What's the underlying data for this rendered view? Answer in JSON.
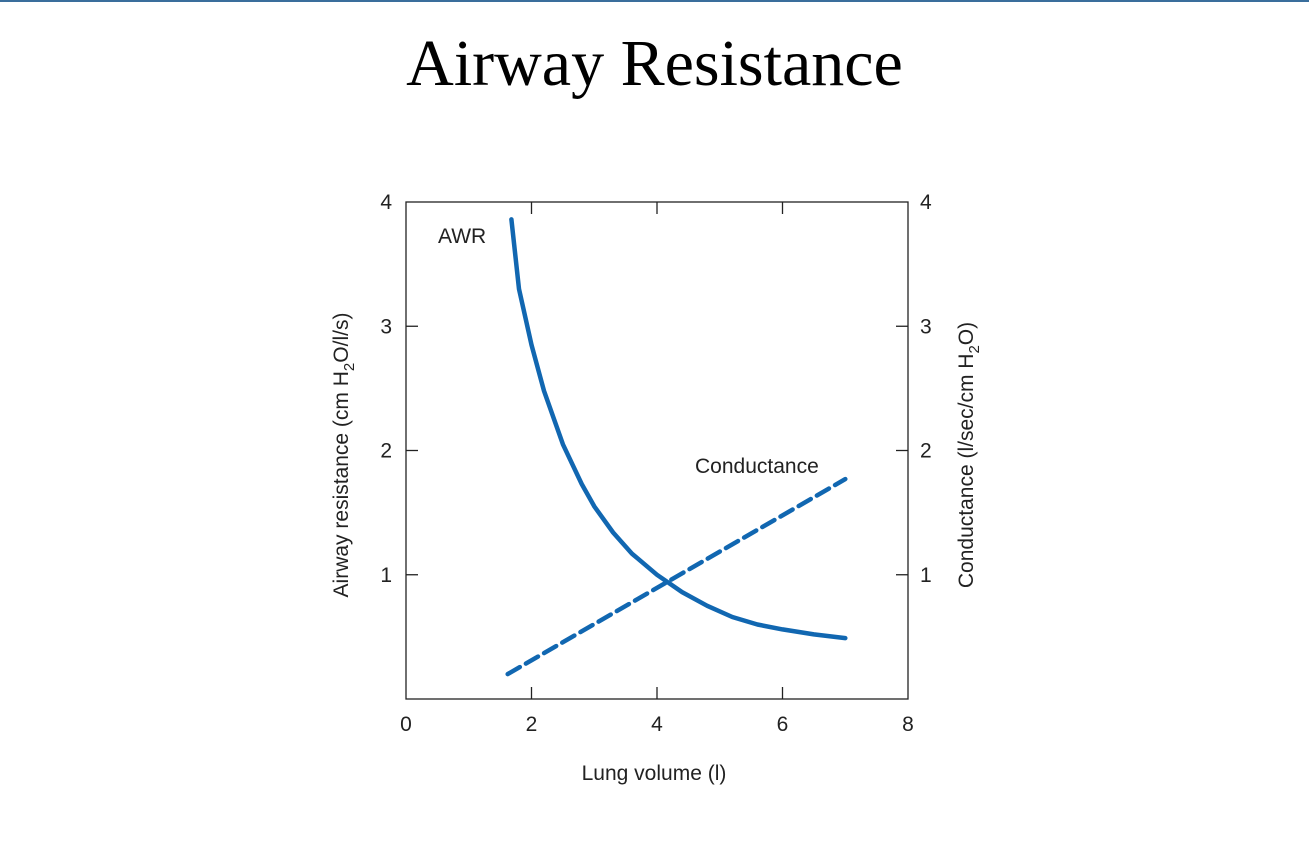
{
  "slide": {
    "title": "Airway Resistance"
  },
  "colors": {
    "series": "#1167b1",
    "axis": "#222222",
    "top_rule": "#3a6e9c"
  },
  "chart_data": {
    "type": "line",
    "title": "",
    "xlabel": "Lung volume (l)",
    "ylabel_left": {
      "pre": "Airway resistance (cm H",
      "sub": "2",
      "post": "O/l/s)"
    },
    "ylabel_right": {
      "pre": "Conductance (l/sec/cm H",
      "sub": "2",
      "post": "O)"
    },
    "xlim": [
      0,
      8
    ],
    "ylim": [
      0,
      4
    ],
    "xticks": [
      0,
      2,
      4,
      6,
      8
    ],
    "yticks_left": [
      1,
      2,
      3,
      4
    ],
    "yticks_right": [
      1,
      2,
      3,
      4
    ],
    "grid": false,
    "legend": "none",
    "series": [
      {
        "name": "AWR",
        "axis": "left",
        "style": "solid",
        "x": [
          1.68,
          1.8,
          2.0,
          2.2,
          2.5,
          2.8,
          3.0,
          3.3,
          3.6,
          4.0,
          4.4,
          4.8,
          5.2,
          5.6,
          6.0,
          6.5,
          7.0
        ],
        "y": [
          3.86,
          3.3,
          2.85,
          2.48,
          2.05,
          1.73,
          1.55,
          1.34,
          1.17,
          1.0,
          0.86,
          0.75,
          0.66,
          0.6,
          0.56,
          0.52,
          0.49
        ]
      },
      {
        "name": "Conductance",
        "axis": "right",
        "style": "dashed",
        "x": [
          1.62,
          7.0
        ],
        "y": [
          0.2,
          1.77
        ]
      }
    ]
  }
}
